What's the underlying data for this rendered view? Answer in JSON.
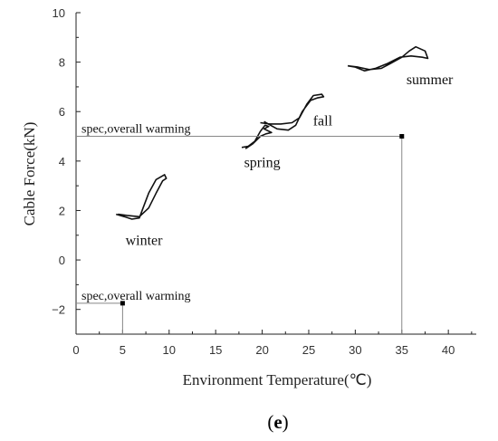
{
  "chart_data": {
    "type": "line",
    "xlabel": "Environment Temperature(℃)",
    "ylabel": "Cable Force(kN)",
    "xlim": [
      0,
      43
    ],
    "ylim": [
      -3,
      10
    ],
    "xticks": [
      0,
      5,
      10,
      15,
      20,
      25,
      30,
      35,
      40
    ],
    "yticks": [
      -2,
      0,
      2,
      4,
      6,
      8,
      10
    ],
    "grid": false,
    "series": [
      {
        "name": "winter",
        "points": [
          [
            4.3,
            1.85
          ],
          [
            5.2,
            1.75
          ],
          [
            6.0,
            1.65
          ],
          [
            6.8,
            1.7
          ],
          [
            7.2,
            2.1
          ],
          [
            7.8,
            2.7
          ],
          [
            8.6,
            3.25
          ],
          [
            9.5,
            3.45
          ],
          [
            9.7,
            3.3
          ],
          [
            9.3,
            3.2
          ],
          [
            8.6,
            2.7
          ],
          [
            7.8,
            2.1
          ],
          [
            6.8,
            1.75
          ],
          [
            5.5,
            1.8
          ],
          [
            4.5,
            1.85
          ]
        ]
      },
      {
        "name": "spring",
        "points": [
          [
            17.8,
            4.55
          ],
          [
            18.5,
            4.6
          ],
          [
            19.2,
            4.8
          ],
          [
            19.8,
            5.2
          ],
          [
            20.3,
            5.45
          ],
          [
            20.7,
            5.4
          ],
          [
            20.2,
            5.3
          ],
          [
            21.0,
            5.15
          ],
          [
            20.4,
            5.1
          ],
          [
            19.8,
            5.0
          ],
          [
            19.0,
            4.7
          ],
          [
            18.2,
            4.5
          ]
        ]
      },
      {
        "name": "fall",
        "points": [
          [
            19.8,
            5.55
          ],
          [
            20.8,
            5.5
          ],
          [
            22.0,
            5.5
          ],
          [
            23.2,
            5.55
          ],
          [
            24.0,
            5.75
          ],
          [
            24.8,
            6.3
          ],
          [
            25.5,
            6.65
          ],
          [
            26.4,
            6.7
          ],
          [
            26.6,
            6.6
          ],
          [
            25.9,
            6.55
          ],
          [
            25.2,
            6.45
          ],
          [
            24.3,
            6.0
          ],
          [
            23.6,
            5.45
          ],
          [
            22.8,
            5.25
          ],
          [
            21.6,
            5.3
          ],
          [
            20.9,
            5.45
          ],
          [
            20.2,
            5.6
          ]
        ]
      },
      {
        "name": "summer",
        "points": [
          [
            29.2,
            7.85
          ],
          [
            30.0,
            7.8
          ],
          [
            31.0,
            7.65
          ],
          [
            32.2,
            7.75
          ],
          [
            33.5,
            7.95
          ],
          [
            34.8,
            8.2
          ],
          [
            36.0,
            8.25
          ],
          [
            37.2,
            8.2
          ],
          [
            37.8,
            8.15
          ],
          [
            37.5,
            8.45
          ],
          [
            36.5,
            8.62
          ],
          [
            35.8,
            8.45
          ],
          [
            35.0,
            8.2
          ],
          [
            33.8,
            7.95
          ],
          [
            32.8,
            7.75
          ],
          [
            31.5,
            7.7
          ],
          [
            30.3,
            7.8
          ],
          [
            29.2,
            7.85
          ]
        ]
      }
    ],
    "annotations": [
      {
        "text": "winter",
        "x": 7.3,
        "y": 0.6
      },
      {
        "text": "spring",
        "x": 20.0,
        "y": 3.75
      },
      {
        "text": "fall",
        "x": 26.5,
        "y": 5.45
      },
      {
        "text": "summer",
        "x": 38.0,
        "y": 7.1
      }
    ],
    "specs": [
      {
        "label": "spec,overall warming",
        "x": 35,
        "y": 5
      },
      {
        "label": "spec,overall warming",
        "x": 5,
        "y": -1.75
      }
    ]
  },
  "panel_label": {
    "open": "(",
    "letter": "e",
    "close": ")"
  }
}
